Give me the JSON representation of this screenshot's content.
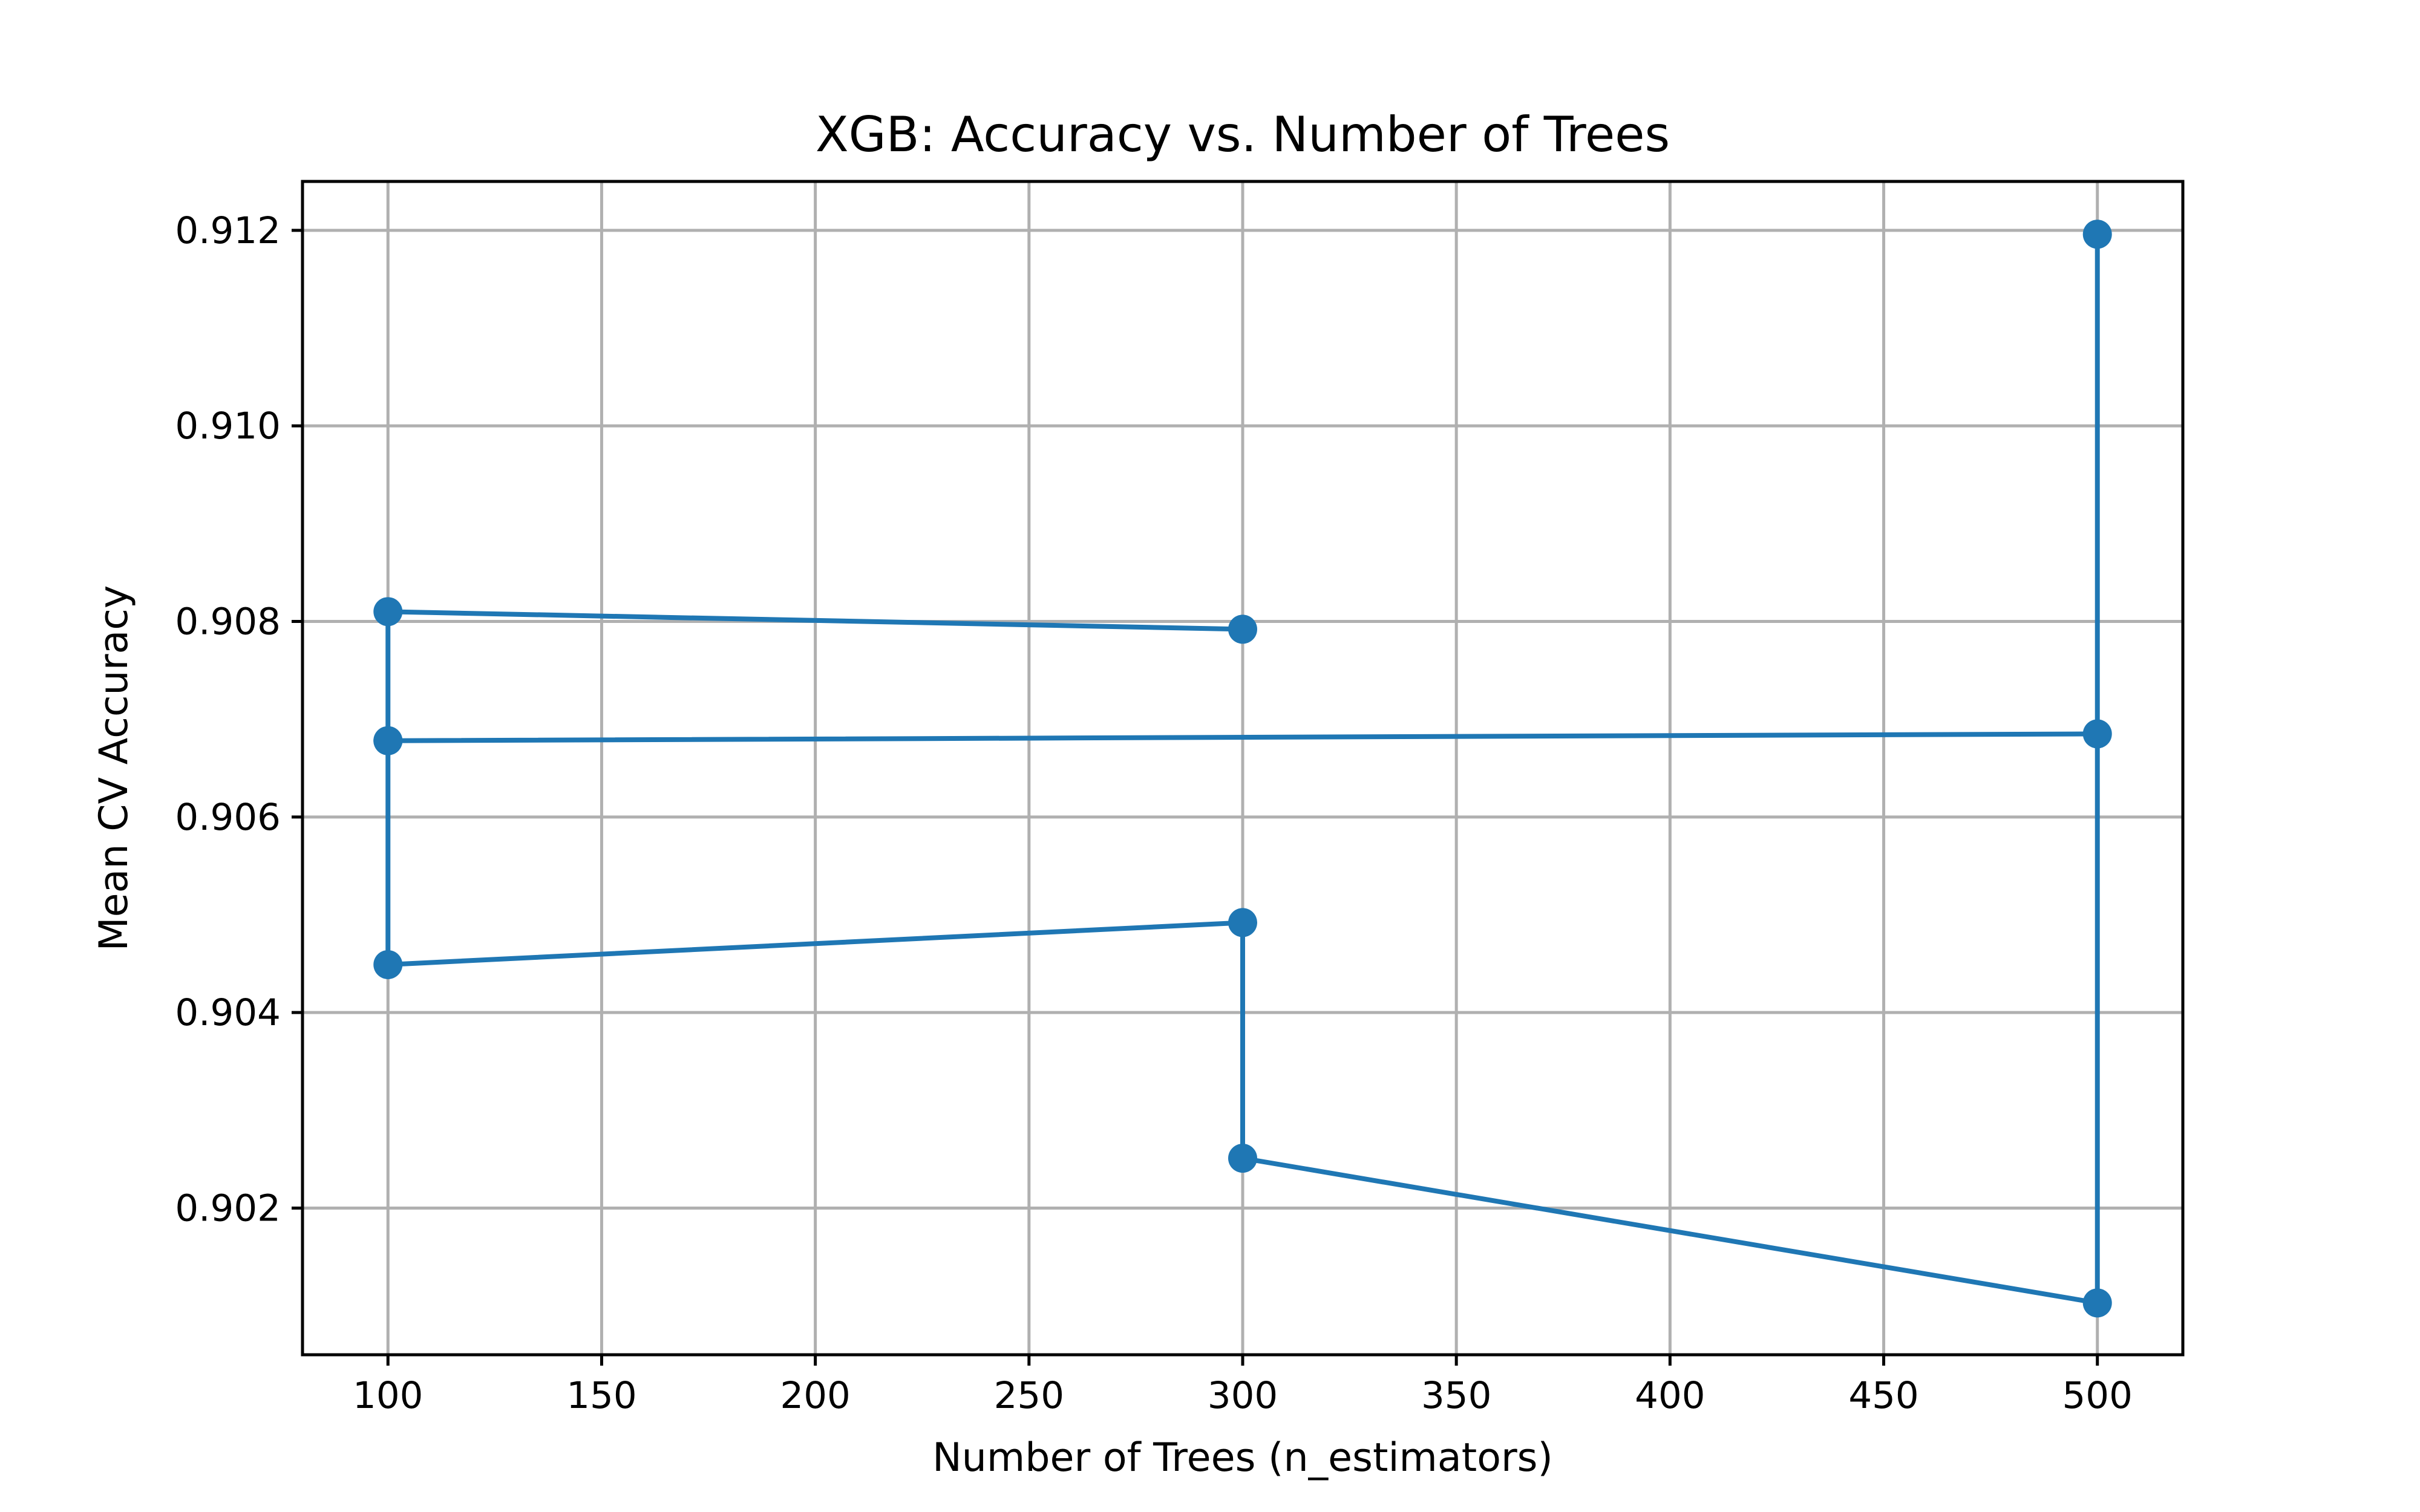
{
  "chart_data": {
    "type": "line",
    "title": "XGB: Accuracy vs. Number of Trees",
    "xlabel": "Number of Trees (n_estimators)",
    "ylabel": "Mean CV Accuracy",
    "xlim": [
      80,
      520
    ],
    "ylim": [
      0.9005,
      0.9125
    ],
    "x_ticks": [
      100,
      150,
      200,
      250,
      300,
      350,
      400,
      450,
      500
    ],
    "x_tick_labels": [
      "100",
      "150",
      "200",
      "250",
      "300",
      "350",
      "400",
      "450",
      "500"
    ],
    "y_ticks": [
      0.902,
      0.904,
      0.906,
      0.908,
      0.91,
      0.912
    ],
    "y_tick_labels": [
      "0.902",
      "0.904",
      "0.906",
      "0.908",
      "0.910",
      "0.912"
    ],
    "grid": true,
    "series": [
      {
        "color": "#1f77b4",
        "marker": "circle",
        "x": [
          300,
          100,
          100,
          100,
          300,
          300,
          500,
          500,
          500,
          100
        ],
        "y": [
          0.90792,
          0.9081,
          0.90678,
          0.90449,
          0.90492,
          0.90251,
          0.90103,
          0.91196,
          0.90685,
          0.90678
        ]
      }
    ]
  }
}
